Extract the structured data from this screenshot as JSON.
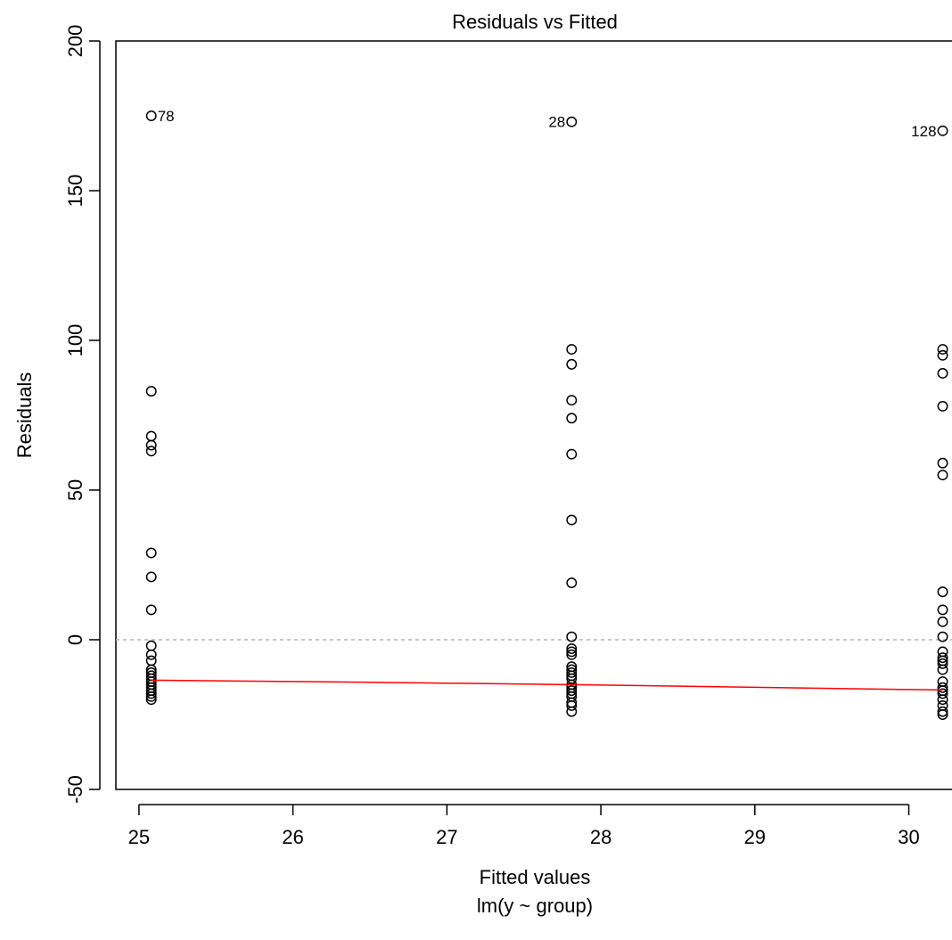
{
  "chart_data": {
    "type": "scatter",
    "title": "Residuals vs Fitted",
    "xlabel": "Fitted values",
    "subtitle": "lm(y ~ group)",
    "ylabel": "Residuals",
    "xlim": [
      24.85,
      30.35
    ],
    "ylim": [
      -50,
      200
    ],
    "xticks": [
      25,
      26,
      27,
      28,
      29,
      30
    ],
    "yticks": [
      -50,
      0,
      50,
      100,
      150,
      200
    ],
    "reference_line": 0,
    "groups": [
      {
        "x": 25.08,
        "residuals": [
          175,
          83,
          68,
          65,
          63,
          29,
          21,
          10,
          -2,
          -5,
          -7,
          -10,
          -11,
          -12,
          -13,
          -14,
          -15,
          -16,
          -17,
          -18,
          -19,
          -20
        ]
      },
      {
        "x": 27.81,
        "residuals": [
          173,
          97,
          92,
          80,
          74,
          62,
          40,
          19,
          1,
          -3,
          -4,
          -5,
          -9,
          -10,
          -11,
          -12,
          -13,
          -15,
          -16,
          -17,
          -18,
          -19,
          -21,
          -22,
          -24
        ]
      },
      {
        "x": 30.22,
        "residuals": [
          170,
          97,
          95,
          89,
          78,
          59,
          55,
          16,
          10,
          6,
          1,
          -4,
          -6,
          -7,
          -8,
          -10,
          -14,
          -16,
          -17,
          -18,
          -20,
          -22,
          -24,
          -25
        ]
      }
    ],
    "outlier_labels": [
      {
        "label": "78",
        "x": 25.08,
        "y": 175,
        "side": "right"
      },
      {
        "label": "28",
        "x": 27.81,
        "y": 173,
        "side": "left"
      },
      {
        "label": "128",
        "x": 30.22,
        "y": 170,
        "side": "left"
      }
    ],
    "smooth_line": {
      "color": "#ff0000",
      "x": [
        25.08,
        26.5,
        27.81,
        29.0,
        30.22
      ],
      "y": [
        -13.5,
        -14.2,
        -15.0,
        -15.9,
        -16.8
      ]
    },
    "point_color": "#000000",
    "reference_line_color": "#b3b3b3"
  }
}
